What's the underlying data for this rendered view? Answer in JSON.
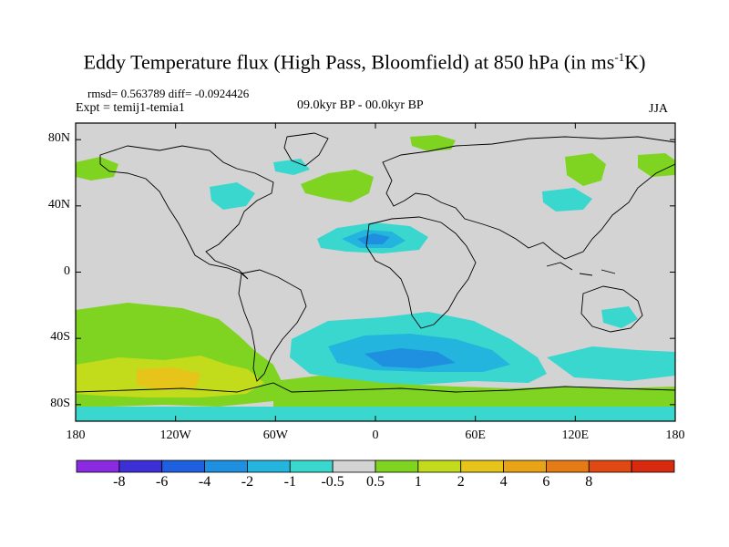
{
  "title_main": "Eddy Temperature flux (High Pass, Bloomfield) at 850 hPa (in ms",
  "title_sup": "-1",
  "title_end": "K)",
  "rmsd_text": "rmsd= 0.563789 diff= -0.0924426",
  "expt_text": "Expt = temij1-temia1",
  "period_text": "09.0kyr BP - 00.0kyr BP",
  "season": "JJA",
  "lat_labels": [
    {
      "text": "80N",
      "lat": 80
    },
    {
      "text": "40N",
      "lat": 40
    },
    {
      "text": "0",
      "lat": 0
    },
    {
      "text": "40S",
      "lat": -40
    },
    {
      "text": "80S",
      "lat": -80
    }
  ],
  "lon_labels": [
    {
      "text": "180",
      "lon": -180
    },
    {
      "text": "120W",
      "lon": -120
    },
    {
      "text": "60W",
      "lon": -60
    },
    {
      "text": "0",
      "lon": 0
    },
    {
      "text": "60E",
      "lon": 60
    },
    {
      "text": "120E",
      "lon": 120
    },
    {
      "text": "180",
      "lon": 180
    }
  ],
  "colorbar": {
    "colors": [
      "#8a2be2",
      "#3c2fd6",
      "#1e60e0",
      "#1f8fdf",
      "#23b5dd",
      "#3ad7cf",
      "#d3d3d3",
      "#7fd321",
      "#c2dc1c",
      "#e6c41a",
      "#e8a317",
      "#e57b14",
      "#e04a12",
      "#d82a0f"
    ],
    "labels": [
      "-8",
      "-6",
      "-4",
      "-2",
      "-1",
      "-0.5",
      "0.5",
      "1",
      "2",
      "4",
      "6",
      "8"
    ]
  },
  "colors": {
    "ocean_neutral": "#d3d3d3",
    "coast": "#000000"
  }
}
